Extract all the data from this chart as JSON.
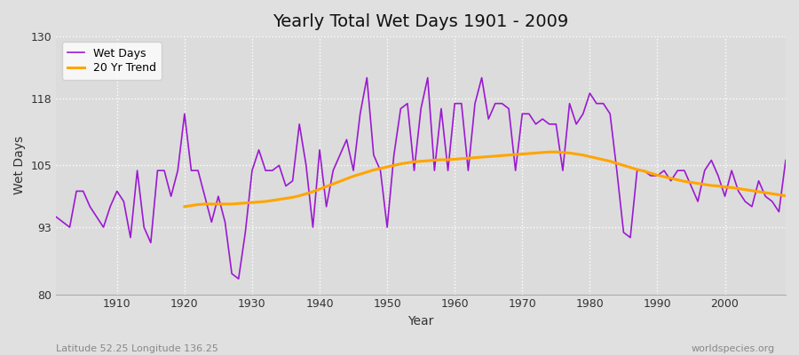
{
  "title": "Yearly Total Wet Days 1901 - 2009",
  "xlabel": "Year",
  "ylabel": "Wet Days",
  "xlim": [
    1901,
    2009
  ],
  "ylim": [
    80,
    130
  ],
  "yticks": [
    80,
    93,
    105,
    118,
    130
  ],
  "xticks": [
    1910,
    1920,
    1930,
    1940,
    1950,
    1960,
    1970,
    1980,
    1990,
    2000
  ],
  "bg_color": "#e0e0e0",
  "plot_bg_color": "#dcdcdc",
  "wet_days_color": "#9b19d0",
  "trend_color": "#FFA500",
  "subtitle_left": "Latitude 52.25 Longitude 136.25",
  "subtitle_right": "worldspecies.org",
  "wet_days": [
    95,
    94,
    93,
    100,
    100,
    97,
    95,
    93,
    97,
    100,
    98,
    91,
    104,
    93,
    90,
    104,
    104,
    99,
    104,
    115,
    104,
    104,
    99,
    94,
    99,
    94,
    84,
    83,
    92,
    104,
    108,
    104,
    104,
    105,
    101,
    102,
    113,
    105,
    93,
    108,
    97,
    104,
    107,
    110,
    104,
    115,
    122,
    107,
    104,
    93,
    107,
    116,
    117,
    104,
    116,
    122,
    104,
    116,
    104,
    117,
    117,
    104,
    117,
    122,
    114,
    117,
    117,
    116,
    104,
    115,
    115,
    113,
    114,
    113,
    113,
    104,
    117,
    113,
    115,
    119,
    117,
    117,
    115,
    104,
    92,
    91,
    104,
    104,
    103,
    103,
    104,
    102,
    104,
    104,
    101,
    98,
    104,
    106,
    103,
    99,
    104,
    100,
    98,
    97,
    102,
    99,
    98,
    96,
    106
  ],
  "years": [
    1901,
    1902,
    1903,
    1904,
    1905,
    1906,
    1907,
    1908,
    1909,
    1910,
    1911,
    1912,
    1913,
    1914,
    1915,
    1916,
    1917,
    1918,
    1919,
    1920,
    1921,
    1922,
    1923,
    1924,
    1925,
    1926,
    1927,
    1928,
    1929,
    1930,
    1931,
    1932,
    1933,
    1934,
    1935,
    1936,
    1937,
    1938,
    1939,
    1940,
    1941,
    1942,
    1943,
    1944,
    1945,
    1946,
    1947,
    1948,
    1949,
    1950,
    1951,
    1952,
    1953,
    1954,
    1955,
    1956,
    1957,
    1958,
    1959,
    1960,
    1961,
    1962,
    1963,
    1964,
    1965,
    1966,
    1967,
    1968,
    1969,
    1970,
    1971,
    1972,
    1973,
    1974,
    1975,
    1976,
    1977,
    1978,
    1979,
    1980,
    1981,
    1982,
    1983,
    1984,
    1985,
    1986,
    1987,
    1988,
    1989,
    1990,
    1991,
    1992,
    1993,
    1994,
    1995,
    1996,
    1997,
    1998,
    1999,
    2000,
    2001,
    2002,
    2003,
    2004,
    2005,
    2006,
    2007,
    2008,
    2009
  ],
  "trend": [
    97.0,
    97.2,
    97.4,
    97.5,
    97.5,
    97.5,
    97.5,
    97.5,
    97.6,
    97.7,
    97.8,
    97.9,
    98.0,
    98.2,
    98.4,
    98.6,
    98.8,
    99.1,
    99.5,
    99.9,
    100.4,
    100.9,
    101.4,
    101.9,
    102.4,
    102.9,
    103.3,
    103.7,
    104.1,
    104.4,
    104.7,
    105.0,
    105.3,
    105.5,
    105.7,
    105.8,
    105.9,
    106.0,
    106.1,
    106.1,
    106.2,
    106.3,
    106.4,
    106.5,
    106.6,
    106.7,
    106.8,
    106.9,
    107.0,
    107.1,
    107.2,
    107.3,
    107.4,
    107.5,
    107.6,
    107.6,
    107.5,
    107.4,
    107.2,
    107.0,
    106.7,
    106.4,
    106.1,
    105.8,
    105.4,
    105.0,
    104.6,
    104.2,
    103.9,
    103.5,
    103.1,
    102.8,
    102.5,
    102.2,
    101.9,
    101.7,
    101.5,
    101.3,
    101.1,
    101.0,
    100.8,
    100.7,
    100.5,
    100.3,
    100.1,
    99.9,
    99.7,
    99.5,
    99.3,
    99.1
  ],
  "trend_years": [
    1920,
    1921,
    1922,
    1923,
    1924,
    1925,
    1926,
    1927,
    1928,
    1929,
    1930,
    1931,
    1932,
    1933,
    1934,
    1935,
    1936,
    1937,
    1938,
    1939,
    1940,
    1941,
    1942,
    1943,
    1944,
    1945,
    1946,
    1947,
    1948,
    1949,
    1950,
    1951,
    1952,
    1953,
    1954,
    1955,
    1956,
    1957,
    1958,
    1959,
    1960,
    1961,
    1962,
    1963,
    1964,
    1965,
    1966,
    1967,
    1968,
    1969,
    1970,
    1971,
    1972,
    1973,
    1974,
    1975,
    1976,
    1977,
    1978,
    1979,
    1980,
    1981,
    1982,
    1983,
    1984,
    1985,
    1986,
    1987,
    1988,
    1989,
    1990,
    1991,
    1992,
    1993,
    1994,
    1995,
    1996,
    1997,
    1998,
    1999,
    2000,
    2001,
    2002,
    2003,
    2004,
    2005,
    2006,
    2007,
    2008,
    2009
  ]
}
